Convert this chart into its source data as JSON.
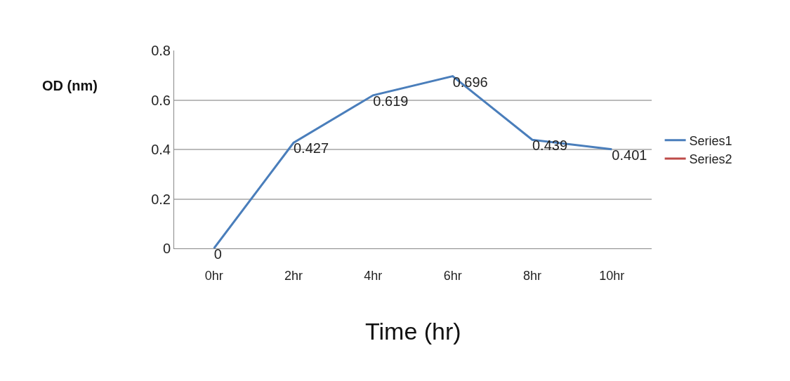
{
  "chart_data": {
    "type": "line",
    "xlabel": "Time (hr)",
    "ylabel": "OD (nm)",
    "categories": [
      "0hr",
      "2hr",
      "4hr",
      "6hr",
      "8hr",
      "10hr"
    ],
    "series": [
      {
        "name": "Series1",
        "color": "#4a7ebb",
        "values": [
          0,
          0.427,
          0.619,
          0.696,
          0.439,
          0.401
        ]
      },
      {
        "name": "Series2",
        "color": "#be4b48",
        "values": [
          null,
          null,
          null,
          null,
          null,
          null
        ]
      }
    ],
    "ylim": [
      0,
      0.8
    ],
    "yticks": [
      0,
      0.2,
      0.4,
      0.6,
      0.8
    ],
    "grid": "y",
    "legend": "right",
    "marker": "none",
    "data_labels": true
  }
}
